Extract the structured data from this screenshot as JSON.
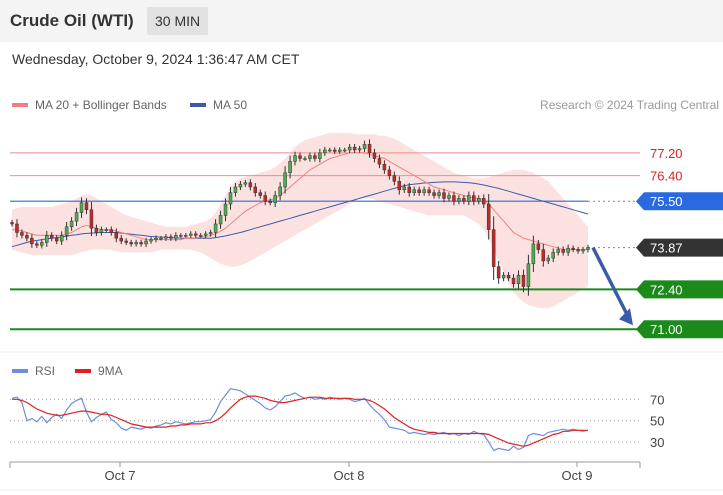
{
  "header": {
    "title": "Crude Oil (WTI)",
    "timeframe": "30 MIN",
    "datetime": "Wednesday, October 9, 2024 1:36:47 AM CET",
    "copyright": "Research © 2024 Trading Central"
  },
  "legend": {
    "ma20_label": "MA 20 + Bollinger Bands",
    "ma50_label": "MA 50",
    "rsi_label": "RSI",
    "rsi_ma_label": "9MA"
  },
  "colors": {
    "ma20": "#f08080",
    "ma50": "#3b5ba9",
    "band_fill": "#fcdcdc",
    "bullish_candle": "#4caf50",
    "bearish_candle": "#c62828",
    "support": "#1b8a1b",
    "pivot": "#2a6ae0",
    "resistance": "#f28b8b",
    "current_price": "#333333",
    "arrow": "#3b5ba9",
    "rsi": "#6b8fe0",
    "rsi_ma": "#e02020"
  },
  "chart_data": [
    {
      "type": "candlestick",
      "name": "price",
      "x_ticks": [
        "Oct 7",
        "Oct 8",
        "Oct 9"
      ],
      "ylim": [
        70.2,
        78.6
      ],
      "levels": [
        {
          "value": 77.2,
          "label": "77.20",
          "role": "resistance"
        },
        {
          "value": 76.4,
          "label": "76.40",
          "role": "resistance"
        },
        {
          "value": 75.5,
          "label": "75.50",
          "role": "pivot"
        },
        {
          "value": 73.87,
          "label": "73.87",
          "role": "current"
        },
        {
          "value": 72.4,
          "label": "72.40",
          "role": "support"
        },
        {
          "value": 71.0,
          "label": "71.00",
          "role": "support"
        }
      ],
      "forecast_arrow": {
        "from": 73.87,
        "to": 71.0
      },
      "close": [
        74.7,
        74.4,
        74.3,
        74.2,
        74.0,
        73.95,
        74.05,
        74.3,
        74.2,
        74.1,
        74.3,
        74.6,
        74.8,
        75.1,
        75.45,
        75.2,
        74.55,
        74.4,
        74.5,
        74.5,
        74.4,
        74.2,
        74.1,
        74.05,
        74.0,
        74.05,
        74.0,
        74.1,
        74.15,
        74.2,
        74.2,
        74.25,
        74.2,
        74.3,
        74.3,
        74.3,
        74.35,
        74.3,
        74.3,
        74.35,
        74.4,
        74.7,
        75.0,
        75.4,
        75.8,
        76.0,
        76.1,
        76.15,
        76.0,
        75.8,
        75.7,
        75.5,
        75.45,
        75.7,
        76.0,
        76.5,
        76.9,
        77.1,
        77.0,
        77.0,
        77.1,
        77.0,
        77.2,
        77.3,
        77.3,
        77.25,
        77.3,
        77.3,
        77.4,
        77.3,
        77.35,
        77.5,
        77.2,
        77.0,
        76.8,
        76.6,
        76.4,
        76.2,
        75.9,
        76.0,
        75.8,
        75.9,
        75.8,
        75.9,
        75.8,
        75.7,
        75.8,
        75.6,
        75.7,
        75.5,
        75.6,
        75.5,
        75.7,
        75.5,
        75.6,
        75.4,
        74.5,
        73.2,
        72.8,
        72.9,
        72.8,
        72.6,
        72.9,
        72.5,
        73.3,
        74.0,
        73.8,
        73.4,
        73.5,
        73.7,
        73.8,
        73.7,
        73.85,
        73.8,
        73.75,
        73.8,
        73.87
      ],
      "ma20": [
        74.5,
        74.5,
        74.45,
        74.4,
        74.35,
        74.3,
        74.3,
        74.3,
        74.3,
        74.3,
        74.3,
        74.35,
        74.4,
        74.5,
        74.6,
        74.65,
        74.6,
        74.55,
        74.5,
        74.5,
        74.5,
        74.45,
        74.4,
        74.35,
        74.3,
        74.25,
        74.2,
        74.15,
        74.15,
        74.15,
        74.15,
        74.15,
        74.15,
        74.15,
        74.15,
        74.2,
        74.2,
        74.2,
        74.25,
        74.25,
        74.3,
        74.35,
        74.45,
        74.55,
        74.7,
        74.85,
        75.0,
        75.15,
        75.25,
        75.35,
        75.45,
        75.5,
        75.55,
        75.6,
        75.7,
        75.85,
        76.0,
        76.15,
        76.3,
        76.45,
        76.6,
        76.7,
        76.8,
        76.9,
        77.0,
        77.05,
        77.1,
        77.15,
        77.2,
        77.2,
        77.2,
        77.2,
        77.15,
        77.1,
        77.05,
        77.0,
        76.9,
        76.8,
        76.7,
        76.6,
        76.5,
        76.4,
        76.3,
        76.2,
        76.1,
        76.0,
        75.95,
        75.9,
        75.85,
        75.8,
        75.75,
        75.7,
        75.65,
        75.6,
        75.6,
        75.55,
        75.4,
        75.2,
        75.0,
        74.8,
        74.6,
        74.4,
        74.3,
        74.2,
        74.15,
        74.1,
        74.05,
        74.0,
        73.95,
        73.9,
        73.85,
        73.8,
        73.8,
        73.8,
        73.8,
        73.8,
        73.8
      ],
      "ma50": [
        73.9,
        73.95,
        74.0,
        74.05,
        74.1,
        74.12,
        74.15,
        74.18,
        74.2,
        74.22,
        74.25,
        74.27,
        74.3,
        74.32,
        74.35,
        74.37,
        74.38,
        74.39,
        74.4,
        74.4,
        74.4,
        74.4,
        74.38,
        74.36,
        74.34,
        74.32,
        74.3,
        74.28,
        74.26,
        74.25,
        74.24,
        74.23,
        74.22,
        74.21,
        74.2,
        74.2,
        74.2,
        74.2,
        74.2,
        74.2,
        74.2,
        74.22,
        74.25,
        74.28,
        74.32,
        74.36,
        74.4,
        74.45,
        74.5,
        74.55,
        74.6,
        74.65,
        74.7,
        74.75,
        74.8,
        74.85,
        74.9,
        74.95,
        75.0,
        75.05,
        75.1,
        75.15,
        75.2,
        75.25,
        75.3,
        75.35,
        75.4,
        75.45,
        75.5,
        75.55,
        75.6,
        75.65,
        75.7,
        75.75,
        75.8,
        75.85,
        75.9,
        75.95,
        76.0,
        76.05,
        76.08,
        76.1,
        76.12,
        76.14,
        76.15,
        76.16,
        76.17,
        76.18,
        76.18,
        76.18,
        76.17,
        76.16,
        76.15,
        76.13,
        76.1,
        76.07,
        76.03,
        75.99,
        75.95,
        75.9,
        75.85,
        75.8,
        75.75,
        75.7,
        75.65,
        75.6,
        75.55,
        75.5,
        75.45,
        75.4,
        75.35,
        75.3,
        75.25,
        75.2,
        75.15,
        75.1,
        75.05
      ],
      "bb_upper": [
        75.2,
        75.25,
        75.3,
        75.3,
        75.3,
        75.3,
        75.3,
        75.3,
        75.3,
        75.35,
        75.4,
        75.45,
        75.5,
        75.6,
        75.7,
        75.75,
        75.7,
        75.6,
        75.5,
        75.4,
        75.3,
        75.2,
        75.1,
        75.0,
        74.95,
        74.9,
        74.85,
        74.8,
        74.75,
        74.7,
        74.65,
        74.6,
        74.6,
        74.6,
        74.6,
        74.6,
        74.65,
        74.7,
        74.75,
        74.8,
        74.9,
        75.1,
        75.4,
        75.7,
        76.0,
        76.2,
        76.3,
        76.35,
        76.4,
        76.45,
        76.5,
        76.55,
        76.6,
        76.7,
        76.85,
        77.0,
        77.2,
        77.4,
        77.55,
        77.65,
        77.7,
        77.75,
        77.8,
        77.85,
        77.9,
        77.9,
        77.9,
        77.9,
        77.9,
        77.85,
        77.85,
        77.85,
        77.85,
        77.85,
        77.8,
        77.8,
        77.75,
        77.7,
        77.6,
        77.5,
        77.4,
        77.3,
        77.2,
        77.1,
        77.0,
        76.9,
        76.8,
        76.7,
        76.6,
        76.5,
        76.45,
        76.4,
        76.35,
        76.3,
        76.3,
        76.3,
        76.35,
        76.4,
        76.45,
        76.5,
        76.55,
        76.6,
        76.6,
        76.6,
        76.55,
        76.5,
        76.4,
        76.3,
        76.2,
        76.0,
        75.8,
        75.6,
        75.4,
        75.2,
        75.0,
        74.8,
        74.6
      ],
      "bb_lower": [
        73.8,
        73.75,
        73.7,
        73.65,
        73.6,
        73.6,
        73.6,
        73.6,
        73.6,
        73.6,
        73.6,
        73.6,
        73.6,
        73.65,
        73.7,
        73.75,
        73.8,
        73.8,
        73.8,
        73.8,
        73.8,
        73.75,
        73.7,
        73.7,
        73.7,
        73.7,
        73.7,
        73.7,
        73.7,
        73.75,
        73.8,
        73.8,
        73.8,
        73.8,
        73.8,
        73.8,
        73.8,
        73.75,
        73.7,
        73.6,
        73.5,
        73.4,
        73.3,
        73.25,
        73.2,
        73.2,
        73.25,
        73.3,
        73.4,
        73.5,
        73.6,
        73.7,
        73.8,
        73.9,
        74.0,
        74.1,
        74.2,
        74.3,
        74.4,
        74.5,
        74.6,
        74.7,
        74.8,
        74.9,
        75.0,
        75.1,
        75.2,
        75.3,
        75.4,
        75.5,
        75.6,
        75.6,
        75.6,
        75.55,
        75.5,
        75.45,
        75.4,
        75.35,
        75.3,
        75.25,
        75.2,
        75.15,
        75.1,
        75.05,
        75.0,
        75.0,
        75.0,
        75.0,
        75.0,
        75.0,
        75.0,
        75.0,
        74.9,
        74.8,
        74.7,
        74.5,
        74.2,
        73.8,
        73.4,
        73.0,
        72.6,
        72.3,
        72.1,
        71.95,
        71.85,
        71.8,
        71.75,
        71.75,
        71.75,
        71.8,
        71.9,
        72.0,
        72.1,
        72.2,
        72.3,
        72.4,
        72.5
      ]
    },
    {
      "type": "line",
      "name": "rsi",
      "y_ticks": [
        30,
        50,
        70
      ],
      "ylim": [
        15,
        90
      ],
      "series": [
        {
          "name": "RSI",
          "values": [
            71,
            72,
            67,
            50,
            52,
            49,
            54,
            48,
            53,
            56,
            52,
            60,
            66,
            69,
            71,
            58,
            49,
            53,
            56,
            58,
            51,
            48,
            43,
            41,
            44,
            43,
            42,
            44,
            43,
            45,
            46,
            48,
            47,
            49,
            48,
            47,
            48,
            49,
            49,
            50,
            51,
            58,
            68,
            74,
            80,
            79,
            78,
            75,
            72,
            69,
            66,
            62,
            60,
            63,
            68,
            73,
            74,
            76,
            73,
            71,
            72,
            70,
            71,
            70,
            72,
            71,
            70,
            71,
            70,
            68,
            69,
            71,
            65,
            60,
            56,
            51,
            44,
            43,
            42,
            41,
            38,
            39,
            38,
            37,
            38,
            37,
            38,
            39,
            37,
            38,
            36,
            38,
            37,
            40,
            38,
            37,
            30,
            22,
            24,
            23,
            22,
            26,
            23,
            25,
            36,
            38,
            37,
            36,
            39,
            40,
            41,
            42,
            41,
            42,
            41,
            40,
            41
          ]
        },
        {
          "name": "9MA",
          "values": [
            70,
            70,
            69,
            67,
            64,
            61,
            59,
            57,
            56,
            55,
            55,
            56,
            57,
            58,
            59,
            59,
            58,
            57,
            56,
            56,
            55,
            53,
            51,
            49,
            47,
            46,
            45,
            44,
            44,
            44,
            44,
            44,
            45,
            45,
            46,
            46,
            47,
            47,
            47,
            48,
            48,
            50,
            53,
            57,
            62,
            66,
            70,
            72,
            73,
            73,
            72,
            71,
            69,
            68,
            67,
            67,
            68,
            69,
            70,
            71,
            72,
            72,
            72,
            71,
            71,
            71,
            71,
            71,
            71,
            70,
            70,
            70,
            69,
            67,
            64,
            61,
            57,
            53,
            50,
            47,
            44,
            42,
            41,
            40,
            39,
            39,
            38,
            38,
            38,
            38,
            38,
            38,
            38,
            38,
            38,
            38,
            37,
            35,
            33,
            31,
            29,
            28,
            27,
            26,
            27,
            29,
            31,
            33,
            35,
            37,
            38,
            40,
            40,
            41,
            41,
            41,
            41
          ]
        }
      ]
    }
  ]
}
